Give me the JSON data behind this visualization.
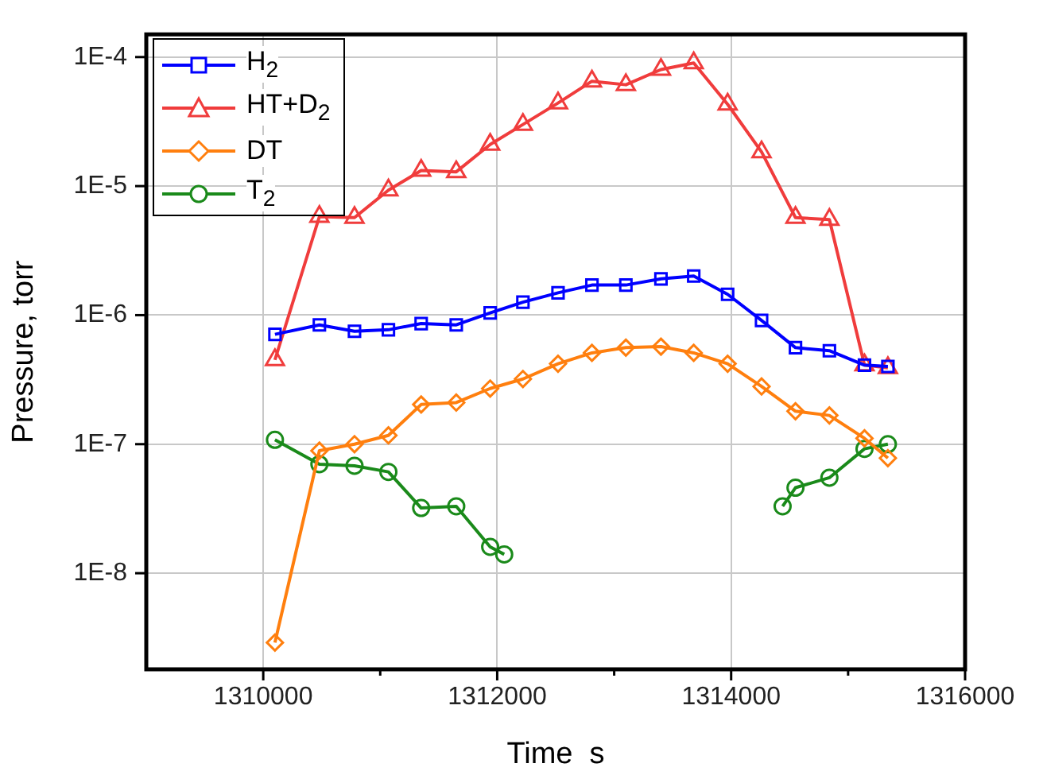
{
  "chart_data": {
    "type": "line",
    "xlabel": "Time  s",
    "ylabel": "Pressure, torr",
    "log": "y",
    "grid": true,
    "legend": "top left",
    "line_style": "solid",
    "xlim": [
      1309000,
      1316000
    ],
    "xticks": [
      {
        "value": 1310000,
        "label": "1310000"
      },
      {
        "value": 1311000,
        "label": null
      },
      {
        "value": 1312000,
        "label": "1312000"
      },
      {
        "value": 1313000,
        "label": null
      },
      {
        "value": 1314000,
        "label": "1314000"
      },
      {
        "value": 1315000,
        "label": null
      },
      {
        "value": 1316000,
        "label": "1316000"
      }
    ],
    "ylim": [
      1.8e-09,
      0.00015
    ],
    "yticks": [
      {
        "value": 1e-08,
        "label": "1E-8"
      },
      {
        "value": 1e-07,
        "label": "1E-7"
      },
      {
        "value": 1e-06,
        "label": "1E-6"
      },
      {
        "value": 1e-05,
        "label": "1E-5"
      },
      {
        "value": 0.0001,
        "label": "1E-4"
      }
    ],
    "series": [
      {
        "name": "H$_{2}$",
        "color": "#0000ff",
        "marker": "square",
        "x": [
          1310100,
          1310480,
          1310780,
          1311070,
          1311350,
          1311650,
          1311940,
          1312220,
          1312520,
          1312810,
          1313100,
          1313400,
          1313680,
          1313970,
          1314260,
          1314550,
          1314840,
          1315140,
          1315340
        ],
        "values": [
          7.1e-07,
          8.4e-07,
          7.5e-07,
          7.7e-07,
          8.6e-07,
          8.4e-07,
          1.04e-06,
          1.26e-06,
          1.49e-06,
          1.71e-06,
          1.71e-06,
          1.91e-06,
          2.01e-06,
          1.45e-06,
          9.1e-07,
          5.6e-07,
          5.3e-07,
          4.1e-07,
          4e-07
        ]
      },
      {
        "name": "HT+D$_{2}$",
        "color": "#f03c3c",
        "marker": "triangle",
        "x": [
          1310100,
          1310480,
          1310780,
          1311070,
          1311350,
          1311650,
          1311940,
          1312220,
          1312520,
          1312810,
          1313100,
          1313400,
          1313680,
          1313970,
          1314260,
          1314550,
          1314840,
          1315140,
          1315340
        ],
        "values": [
          4.5e-07,
          5.8e-06,
          5.7e-06,
          9.3e-06,
          1.32e-05,
          1.29e-05,
          2.1e-05,
          3e-05,
          4.4e-05,
          6.5e-05,
          6.1e-05,
          8e-05,
          9e-05,
          4.3e-05,
          1.84e-05,
          5.7e-06,
          5.5e-06,
          4.1e-07,
          3.9e-07
        ]
      },
      {
        "name": "DT",
        "color": "#ff7f0e",
        "marker": "diamond",
        "x": [
          1310100,
          1310480,
          1310780,
          1311070,
          1311350,
          1311650,
          1311940,
          1312220,
          1312520,
          1312810,
          1313100,
          1313400,
          1313680,
          1313970,
          1314260,
          1314550,
          1314840,
          1315140,
          1315340
        ],
        "values": [
          2.9e-09,
          8.9e-08,
          1e-07,
          1.17e-07,
          2.03e-07,
          2.1e-07,
          2.7e-07,
          3.2e-07,
          4.2e-07,
          5.1e-07,
          5.6e-07,
          5.7e-07,
          5.1e-07,
          4.2e-07,
          2.8e-07,
          1.8e-07,
          1.67e-07,
          1.11e-07,
          7.8e-08
        ]
      },
      {
        "name": "T$_{2}$",
        "color": "#1a8a1a",
        "marker": "circle",
        "x": [
          1310100,
          1310480,
          1310780,
          1311070,
          1311350,
          1311650,
          1311940,
          1312060,
          1313200,
          1314440,
          1314550,
          1314840,
          1315140,
          1315340
        ],
        "values": [
          1.08e-07,
          7e-08,
          6.8e-08,
          6.1e-08,
          3.2e-08,
          3.3e-08,
          1.6e-08,
          1.4e-08,
          null,
          3.3e-08,
          4.6e-08,
          5.5e-08,
          9.2e-08,
          1e-07
        ]
      }
    ]
  }
}
